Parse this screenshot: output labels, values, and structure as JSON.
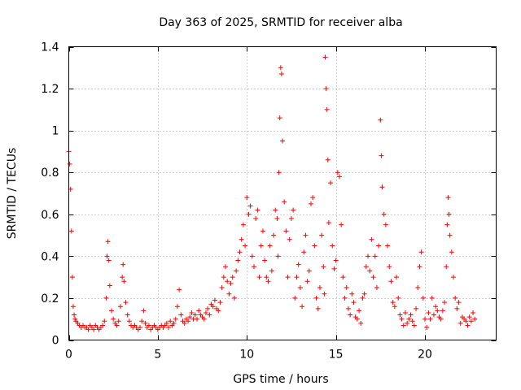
{
  "chart_data": {
    "type": "scatter",
    "title": "Day 363 of 2025, SRMTID for receiver alba",
    "xlabel": "GPS time / hours",
    "ylabel": "SRMTID / TECUs",
    "xlim": [
      0,
      24
    ],
    "ylim": [
      0,
      1.4
    ],
    "xticks": [
      0,
      5,
      10,
      15,
      20
    ],
    "xtick_labels": [
      "0",
      "5",
      "10",
      "15",
      "20"
    ],
    "yticks": [
      0,
      0.2,
      0.4,
      0.6,
      0.8,
      1,
      1.2,
      1.4
    ],
    "ytick_labels": [
      "0",
      "0.2",
      "0.4",
      "0.6",
      "0.8",
      "1",
      "1.2",
      "1.4"
    ],
    "grid": true,
    "marker": "+",
    "color": "#ff0000",
    "series": [
      {
        "name": "SRMTID",
        "x": [
          0.0,
          0.05,
          0.1,
          0.15,
          0.2,
          0.25,
          0.3,
          0.35,
          0.4,
          0.5,
          0.6,
          0.7,
          0.8,
          0.9,
          1.0,
          1.1,
          1.2,
          1.3,
          1.4,
          1.5,
          1.6,
          1.7,
          1.8,
          1.9,
          2.0,
          2.1,
          2.15,
          2.2,
          2.25,
          2.3,
          2.4,
          2.5,
          2.6,
          2.7,
          2.8,
          2.9,
          3.0,
          3.05,
          3.1,
          3.2,
          3.3,
          3.4,
          3.5,
          3.6,
          3.7,
          3.8,
          3.9,
          4.0,
          4.1,
          4.2,
          4.3,
          4.4,
          4.5,
          4.6,
          4.7,
          4.8,
          4.9,
          5.0,
          5.1,
          5.2,
          5.3,
          5.4,
          5.5,
          5.6,
          5.7,
          5.8,
          5.9,
          6.0,
          6.1,
          6.2,
          6.3,
          6.4,
          6.5,
          6.6,
          6.7,
          6.8,
          6.9,
          7.0,
          7.1,
          7.2,
          7.3,
          7.4,
          7.5,
          7.6,
          7.7,
          7.8,
          7.9,
          8.0,
          8.1,
          8.2,
          8.3,
          8.4,
          8.5,
          8.6,
          8.7,
          8.8,
          8.9,
          9.0,
          9.1,
          9.2,
          9.3,
          9.4,
          9.5,
          9.6,
          9.7,
          9.8,
          9.9,
          10.0,
          10.1,
          10.2,
          10.3,
          10.4,
          10.5,
          10.6,
          10.7,
          10.8,
          10.9,
          11.0,
          11.1,
          11.2,
          11.3,
          11.4,
          11.5,
          11.6,
          11.7,
          11.75,
          11.8,
          11.85,
          11.9,
          11.95,
          12.0,
          12.1,
          12.2,
          12.3,
          12.4,
          12.5,
          12.6,
          12.7,
          12.8,
          12.9,
          13.0,
          13.1,
          13.2,
          13.3,
          13.4,
          13.5,
          13.6,
          13.7,
          13.8,
          13.9,
          14.0,
          14.1,
          14.2,
          14.3,
          14.35,
          14.4,
          14.45,
          14.5,
          14.55,
          14.6,
          14.7,
          14.8,
          14.9,
          15.0,
          15.1,
          15.2,
          15.3,
          15.4,
          15.5,
          15.6,
          15.7,
          15.8,
          15.9,
          16.0,
          16.1,
          16.2,
          16.3,
          16.4,
          16.5,
          16.6,
          16.7,
          16.8,
          16.9,
          17.0,
          17.1,
          17.2,
          17.3,
          17.4,
          17.5,
          17.55,
          17.6,
          17.7,
          17.8,
          17.9,
          18.0,
          18.1,
          18.2,
          18.3,
          18.4,
          18.5,
          18.6,
          18.7,
          18.8,
          18.9,
          19.0,
          19.1,
          19.2,
          19.3,
          19.4,
          19.5,
          19.6,
          19.7,
          19.8,
          19.9,
          20.0,
          20.1,
          20.2,
          20.3,
          20.4,
          20.5,
          20.6,
          20.7,
          20.8,
          20.9,
          21.0,
          21.1,
          21.2,
          21.25,
          21.3,
          21.35,
          21.4,
          21.5,
          21.6,
          21.7,
          21.8,
          21.9,
          22.0,
          22.1,
          22.2,
          22.3,
          22.4,
          22.5,
          22.6,
          22.7,
          22.8
        ],
        "y": [
          0.9,
          0.84,
          0.72,
          0.52,
          0.3,
          0.16,
          0.12,
          0.1,
          0.09,
          0.08,
          0.07,
          0.06,
          0.07,
          0.06,
          0.06,
          0.05,
          0.07,
          0.06,
          0.05,
          0.07,
          0.06,
          0.05,
          0.06,
          0.07,
          0.09,
          0.2,
          0.4,
          0.47,
          0.38,
          0.26,
          0.14,
          0.1,
          0.08,
          0.07,
          0.09,
          0.16,
          0.3,
          0.36,
          0.28,
          0.18,
          0.12,
          0.09,
          0.07,
          0.06,
          0.07,
          0.06,
          0.05,
          0.06,
          0.09,
          0.14,
          0.08,
          0.06,
          0.07,
          0.05,
          0.06,
          0.07,
          0.06,
          0.05,
          0.06,
          0.07,
          0.06,
          0.07,
          0.08,
          0.06,
          0.09,
          0.07,
          0.08,
          0.1,
          0.16,
          0.24,
          0.12,
          0.09,
          0.08,
          0.1,
          0.09,
          0.11,
          0.13,
          0.1,
          0.12,
          0.1,
          0.14,
          0.12,
          0.11,
          0.1,
          0.13,
          0.15,
          0.12,
          0.17,
          0.16,
          0.19,
          0.15,
          0.14,
          0.18,
          0.25,
          0.3,
          0.35,
          0.28,
          0.22,
          0.27,
          0.3,
          0.2,
          0.33,
          0.38,
          0.42,
          0.48,
          0.55,
          0.45,
          0.68,
          0.6,
          0.64,
          0.4,
          0.35,
          0.58,
          0.62,
          0.3,
          0.45,
          0.52,
          0.38,
          0.3,
          0.28,
          0.45,
          0.33,
          0.5,
          0.62,
          0.58,
          0.4,
          0.8,
          1.06,
          1.3,
          1.27,
          0.95,
          0.66,
          0.52,
          0.3,
          0.48,
          0.58,
          0.62,
          0.2,
          0.3,
          0.36,
          0.25,
          0.16,
          0.42,
          0.5,
          0.28,
          0.33,
          0.65,
          0.68,
          0.45,
          0.2,
          0.15,
          0.25,
          0.5,
          0.35,
          0.22,
          1.35,
          1.2,
          1.1,
          0.86,
          0.56,
          0.75,
          0.45,
          0.34,
          0.38,
          0.8,
          0.78,
          0.55,
          0.3,
          0.2,
          0.25,
          0.15,
          0.12,
          0.22,
          0.18,
          0.11,
          0.1,
          0.14,
          0.08,
          0.2,
          0.22,
          0.35,
          0.4,
          0.33,
          0.48,
          0.3,
          0.4,
          0.25,
          0.45,
          1.05,
          0.88,
          0.73,
          0.6,
          0.55,
          0.45,
          0.35,
          0.28,
          0.18,
          0.16,
          0.3,
          0.2,
          0.12,
          0.1,
          0.07,
          0.13,
          0.08,
          0.1,
          0.12,
          0.09,
          0.07,
          0.15,
          0.25,
          0.35,
          0.42,
          0.2,
          0.1,
          0.06,
          0.13,
          0.1,
          0.2,
          0.12,
          0.16,
          0.14,
          0.11,
          0.1,
          0.14,
          0.18,
          0.35,
          0.55,
          0.68,
          0.6,
          0.5,
          0.42,
          0.3,
          0.2,
          0.15,
          0.18,
          0.08,
          0.11,
          0.1,
          0.09,
          0.07,
          0.11,
          0.09,
          0.13,
          0.1
        ]
      }
    ]
  }
}
